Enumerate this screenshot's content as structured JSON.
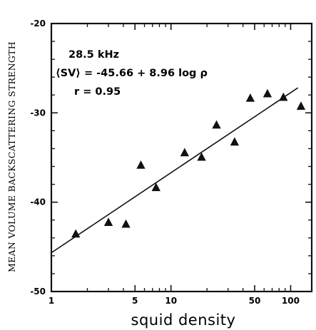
{
  "chart_data": {
    "type": "scatter",
    "title": "",
    "xlabel": "squid density",
    "ylabel": "MEAN VOLUME BACKSCATTERING STRENGTH",
    "x_scale": "log",
    "xlim": [
      1,
      150
    ],
    "ylim": [
      -50,
      -20
    ],
    "x_ticks": [
      1,
      5,
      10,
      50,
      100
    ],
    "x_tick_labels": [
      "1",
      "5",
      "10",
      "50",
      "100"
    ],
    "y_ticks": [
      -20,
      -30,
      -40,
      -50
    ],
    "y_tick_labels": [
      "-20",
      "-30",
      "-40",
      "-50"
    ],
    "grid": false,
    "legend": "none",
    "annotations": [
      "28.5 kHz",
      "⟨SV⟩ = -45.66 + 8.96 log ρ",
      "r = 0.95"
    ],
    "marker": "triangle",
    "series": [
      {
        "points": [
          {
            "x": 1.6,
            "y": -43.6
          },
          {
            "x": 3.0,
            "y": -42.3
          },
          {
            "x": 4.2,
            "y": -42.5
          },
          {
            "x": 5.6,
            "y": -35.9
          },
          {
            "x": 7.5,
            "y": -38.4
          },
          {
            "x": 13,
            "y": -34.5
          },
          {
            "x": 18,
            "y": -35.0
          },
          {
            "x": 24,
            "y": -31.4
          },
          {
            "x": 34,
            "y": -33.3
          },
          {
            "x": 46,
            "y": -28.4
          },
          {
            "x": 64,
            "y": -27.9
          },
          {
            "x": 87,
            "y": -28.3
          },
          {
            "x": 122,
            "y": -29.3
          }
        ]
      }
    ],
    "fit_line": {
      "intercept": -45.66,
      "slope": 8.96,
      "x_range": [
        1,
        150
      ]
    }
  }
}
